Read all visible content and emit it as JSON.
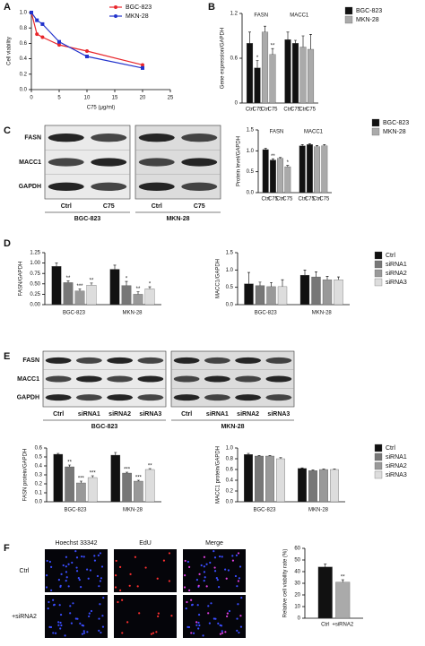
{
  "panels": [
    "A",
    "B",
    "C",
    "D",
    "E",
    "F"
  ],
  "chart_data": [
    {
      "type": "line",
      "ylabel": "Cell viability",
      "xlabel": "C75 (μg/ml)",
      "x": [
        0,
        1,
        2,
        5,
        10,
        20
      ],
      "xlim": [
        0,
        25
      ],
      "xticks": [
        0,
        5,
        10,
        15,
        20,
        25
      ],
      "ylim": [
        0,
        1
      ],
      "yticks": [
        {
          "value": 0,
          "label": "0.0"
        },
        0.2,
        0.4,
        0.6,
        0.8,
        {
          "value": 1,
          "label": "1.0"
        }
      ],
      "series": [
        {
          "name": "BGC-823",
          "color": "#e8262b",
          "marker": "circle",
          "values": [
            1.0,
            0.72,
            0.68,
            0.58,
            0.5,
            0.32
          ]
        },
        {
          "name": "MKN-28",
          "color": "#2233cc",
          "marker": "square",
          "values": [
            1.0,
            0.9,
            0.85,
            0.62,
            0.43,
            0.28
          ]
        }
      ]
    },
    {
      "type": "bar",
      "ylabel": "Gene expression/GAPDH",
      "ylim": [
        0,
        1.2
      ],
      "yticks": [
        0,
        0.6,
        1.2
      ],
      "group_label_position": "top",
      "legend": [
        {
          "name": "BGC-823",
          "color": "#111111"
        },
        {
          "name": "MKN-28",
          "color": "#aaaaaa"
        }
      ],
      "groups": [
        {
          "label": "FASN",
          "categories": [
            "Ctrl",
            "C75",
            "Ctrl",
            "C75"
          ],
          "values": [
            0.8,
            0.47,
            0.95,
            0.65
          ],
          "errors": [
            0.15,
            0.1,
            0.08,
            0.08
          ],
          "colors": [
            "#111111",
            "#111111",
            "#aaaaaa",
            "#aaaaaa"
          ],
          "annotations": [
            null,
            "*",
            null,
            "**"
          ]
        },
        {
          "label": "MACC1",
          "categories": [
            "Ctrl",
            "C75",
            "Ctrl",
            "C75"
          ],
          "values": [
            0.85,
            0.8,
            0.75,
            0.72
          ],
          "errors": [
            0.1,
            0.04,
            0.15,
            0.2
          ],
          "colors": [
            "#111111",
            "#111111",
            "#aaaaaa",
            "#aaaaaa"
          ]
        }
      ]
    },
    {
      "type": "bar",
      "ylabel": "Protein level/GAPDH",
      "ylim": [
        0,
        1.5
      ],
      "yticks": [
        {
          "value": 0,
          "label": "0.0"
        },
        0.5,
        {
          "value": 1,
          "label": "1.0"
        },
        1.5
      ],
      "group_label_position": "top",
      "legend": [
        {
          "name": "BGC-823",
          "color": "#111111"
        },
        {
          "name": "MKN-28",
          "color": "#aaaaaa"
        }
      ],
      "groups": [
        {
          "label": "FASN",
          "categories": [
            "Ctrl",
            "C75",
            "Ctrl",
            "C75"
          ],
          "values": [
            1.03,
            0.78,
            0.82,
            0.62
          ],
          "errors": [
            0.03,
            0.03,
            0.02,
            0.03
          ],
          "colors": [
            "#111111",
            "#111111",
            "#aaaaaa",
            "#aaaaaa"
          ],
          "annotations": [
            null,
            "**",
            null,
            "*"
          ]
        },
        {
          "label": "MACC1",
          "categories": [
            "Ctrl",
            "C75",
            "Ctrl",
            "C75"
          ],
          "values": [
            1.12,
            1.15,
            1.1,
            1.12
          ],
          "errors": [
            0.03,
            0.02,
            0.03,
            0.03
          ],
          "colors": [
            "#111111",
            "#111111",
            "#aaaaaa",
            "#aaaaaa"
          ]
        }
      ]
    },
    {
      "type": "bar",
      "ylabel": "FASN/GAPDH",
      "ylim": [
        0,
        1.25
      ],
      "yticks": [
        {
          "value": 0,
          "label": "0.00"
        },
        0.25,
        {
          "value": 0.5,
          "label": "0.50"
        },
        0.75,
        {
          "value": 1,
          "label": "1.00"
        },
        1.25
      ],
      "group_label_position": "bottom",
      "groups": [
        {
          "label": "BGC-823",
          "values": [
            0.92,
            0.53,
            0.33,
            0.47
          ],
          "errors": [
            0.08,
            0.04,
            0.05,
            0.05
          ],
          "colors": [
            "#111111",
            "#777777",
            "#999999",
            "#dddddd"
          ],
          "annotations": [
            null,
            "**",
            "***",
            "**"
          ]
        },
        {
          "label": "MKN-28",
          "values": [
            0.85,
            0.46,
            0.25,
            0.38
          ],
          "errors": [
            0.1,
            0.1,
            0.06,
            0.05
          ],
          "colors": [
            "#111111",
            "#777777",
            "#999999",
            "#dddddd"
          ],
          "annotations": [
            null,
            "*",
            "**",
            "*"
          ]
        }
      ]
    },
    {
      "type": "bar",
      "ylabel": "MACC1/GAPDH",
      "ylim": [
        0,
        1.5
      ],
      "yticks": [
        {
          "value": 0,
          "label": "0.0"
        },
        0.5,
        {
          "value": 1,
          "label": "1.0"
        },
        1.5
      ],
      "group_label_position": "bottom",
      "legend": [
        {
          "name": "Ctrl",
          "color": "#111111"
        },
        {
          "name": "siRNA1",
          "color": "#777777"
        },
        {
          "name": "siRNA2",
          "color": "#999999"
        },
        {
          "name": "siRNA3",
          "color": "#dddddd"
        }
      ],
      "groups": [
        {
          "label": "BGC-823",
          "values": [
            0.6,
            0.55,
            0.52,
            0.52
          ],
          "errors": [
            0.33,
            0.1,
            0.12,
            0.2
          ],
          "colors": [
            "#111111",
            "#777777",
            "#999999",
            "#dddddd"
          ]
        },
        {
          "label": "MKN-28",
          "values": [
            0.85,
            0.8,
            0.72,
            0.72
          ],
          "errors": [
            0.15,
            0.15,
            0.1,
            0.08
          ],
          "colors": [
            "#111111",
            "#777777",
            "#999999",
            "#dddddd"
          ]
        }
      ]
    },
    {
      "type": "bar",
      "ylabel": "FASN protein/GAPDH",
      "ylim": [
        0,
        0.6
      ],
      "yticks": [
        {
          "value": 0,
          "label": "0.0"
        },
        0.1,
        0.2,
        0.3,
        0.4,
        0.5,
        0.6
      ],
      "group_label_position": "bottom",
      "groups": [
        {
          "label": "BGC-823",
          "values": [
            0.53,
            0.39,
            0.21,
            0.27
          ],
          "errors": [
            0.01,
            0.02,
            0.02,
            0.02
          ],
          "colors": [
            "#111111",
            "#777777",
            "#999999",
            "#dddddd"
          ],
          "annotations": [
            null,
            "**",
            "***",
            "***"
          ]
        },
        {
          "label": "MKN-28",
          "values": [
            0.52,
            0.32,
            0.23,
            0.36
          ],
          "errors": [
            0.03,
            0.01,
            0.01,
            0.01
          ],
          "colors": [
            "#111111",
            "#777777",
            "#999999",
            "#dddddd"
          ],
          "annotations": [
            null,
            "***",
            "***",
            "**"
          ]
        }
      ]
    },
    {
      "type": "bar",
      "ylabel": "MACC1 protein/GAPDH",
      "ylim": [
        0,
        1
      ],
      "yticks": [
        {
          "value": 0,
          "label": "0.0"
        },
        0.2,
        0.4,
        0.6,
        0.8,
        {
          "value": 1,
          "label": "1.0"
        }
      ],
      "group_label_position": "bottom",
      "legend": [
        {
          "name": "Ctrl",
          "color": "#111111"
        },
        {
          "name": "siRNA1",
          "color": "#777777"
        },
        {
          "name": "siRNA2",
          "color": "#999999"
        },
        {
          "name": "siRNA3",
          "color": "#dddddd"
        }
      ],
      "groups": [
        {
          "label": "BGC-823",
          "values": [
            0.88,
            0.85,
            0.85,
            0.8
          ],
          "errors": [
            0.02,
            0.01,
            0.01,
            0.02
          ],
          "colors": [
            "#111111",
            "#777777",
            "#999999",
            "#dddddd"
          ]
        },
        {
          "label": "MKN-28",
          "values": [
            0.62,
            0.58,
            0.6,
            0.6
          ],
          "errors": [
            0.01,
            0.01,
            0.01,
            0.01
          ],
          "colors": [
            "#111111",
            "#777777",
            "#999999",
            "#dddddd"
          ]
        }
      ]
    },
    {
      "type": "bar",
      "ylabel": "Relative cell viability rate (%)",
      "ylim": [
        0,
        60
      ],
      "yticks": [
        0,
        10,
        20,
        30,
        40,
        50,
        60
      ],
      "groups": [
        {
          "categories": [
            "Ctrl",
            "+siRNA2"
          ],
          "values": [
            44,
            31
          ],
          "errors": [
            2.5,
            2
          ],
          "colors": [
            "#111111",
            "#aaaaaa"
          ],
          "annotations": [
            null,
            "**"
          ]
        }
      ]
    }
  ],
  "blots": [
    {
      "rows": [
        "FASN",
        "MACC1",
        "GAPDH"
      ],
      "gels": [
        {
          "lanes": [
            "Ctrl",
            "C75"
          ],
          "cell_line": "BGC-823"
        },
        {
          "lanes": [
            "Ctrl",
            "C75"
          ],
          "cell_line": "MKN-28"
        }
      ]
    },
    {
      "rows": [
        "FASN",
        "MACC1",
        "GAPDH"
      ],
      "gels": [
        {
          "lanes": [
            "Ctrl",
            "siRNA1",
            "siRNA2",
            "siRNA3"
          ],
          "cell_line": "BGC-823"
        },
        {
          "lanes": [
            "Ctrl",
            "siRNA1",
            "siRNA2",
            "siRNA3"
          ],
          "cell_line": "MKN-28"
        }
      ]
    }
  ],
  "microscopy": {
    "channels": [
      "Hoechst 33342",
      "EdU",
      "Merge"
    ],
    "conditions": [
      "Ctrl",
      "+siRNA2"
    ]
  }
}
